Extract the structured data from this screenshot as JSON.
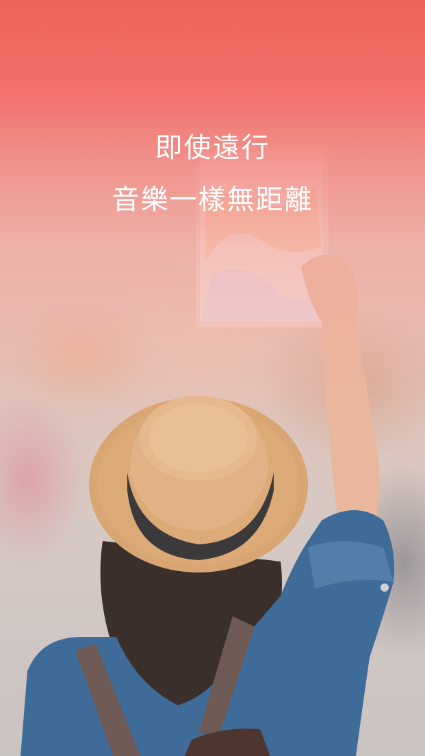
{
  "headline": {
    "line1": "即使遠行",
    "line2": "音樂一樣無距離"
  },
  "colors": {
    "top_gradient": "#F06258",
    "text": "#FFFFFF",
    "hat": "#D9A572",
    "hat_band": "#3C3A3A",
    "jacket": "#3E6C9C"
  }
}
